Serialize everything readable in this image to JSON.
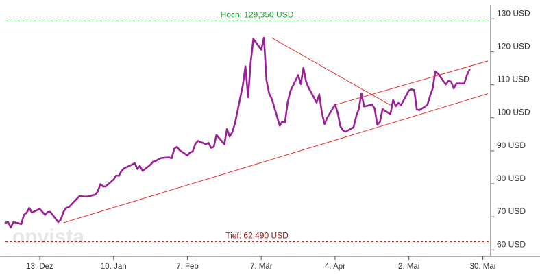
{
  "chart_data": {
    "type": "line",
    "title": "",
    "xlabel": "",
    "ylabel": "",
    "unit": "USD",
    "ylim": [
      58,
      134
    ],
    "grid": false,
    "watermark": "onvista",
    "colors": {
      "line": "#9b1f97",
      "trend": "#e8302a",
      "high": "#1f9e2c",
      "low": "#8c1a1a",
      "axis": "#555555"
    },
    "y_ticks": [
      {
        "value": 60,
        "label": "60 USD"
      },
      {
        "value": 70,
        "label": "70 USD"
      },
      {
        "value": 80,
        "label": "80 USD"
      },
      {
        "value": 90,
        "label": "90 USD"
      },
      {
        "value": 100,
        "label": "100 USD"
      },
      {
        "value": 110,
        "label": "110 USD"
      },
      {
        "value": 120,
        "label": "120 USD"
      },
      {
        "value": 130,
        "label": "130 USD"
      }
    ],
    "x_ticks": [
      {
        "date": "2021-12-13",
        "label": "13. Dez"
      },
      {
        "date": "2022-01-10",
        "label": "10. Jan"
      },
      {
        "date": "2022-02-07",
        "label": "7. Feb"
      },
      {
        "date": "2022-03-07",
        "label": "7. Mär"
      },
      {
        "date": "2022-04-04",
        "label": "4. Apr"
      },
      {
        "date": "2022-05-02",
        "label": "2. Mai"
      },
      {
        "date": "2022-05-30",
        "label": "30. Mai"
      }
    ],
    "x_range": [
      "2021-11-30",
      "2022-06-02"
    ],
    "annotations": {
      "high": {
        "value": 129.35,
        "label": "Hoch: 129,350 USD"
      },
      "low": {
        "value": 62.49,
        "label": "Tief: 62,490 USD"
      }
    },
    "trend_lines": [
      {
        "from": {
          "date": "2021-12-22",
          "value": 68.2
        },
        "to": {
          "date": "2022-06-01",
          "value": 107.3
        }
      },
      {
        "from": {
          "date": "2022-03-11",
          "value": 124.2
        },
        "to": {
          "date": "2022-04-25",
          "value": 103.8
        }
      },
      {
        "from": {
          "date": "2022-04-04",
          "value": 103.9
        },
        "to": {
          "date": "2022-06-01",
          "value": 117.2
        }
      }
    ],
    "series": [
      {
        "points": [
          [
            "2021-11-30",
            68.2
          ],
          [
            "2021-12-01",
            68.4
          ],
          [
            "2021-12-02",
            66.8
          ],
          [
            "2021-12-03",
            68.4
          ],
          [
            "2021-12-06",
            67.8
          ],
          [
            "2021-12-07",
            70.6
          ],
          [
            "2021-12-08",
            71.2
          ],
          [
            "2021-12-09",
            72.7
          ],
          [
            "2021-12-10",
            71.3
          ],
          [
            "2021-12-13",
            72.4
          ],
          [
            "2021-12-14",
            71.5
          ],
          [
            "2021-12-15",
            70.6
          ],
          [
            "2021-12-16",
            71.4
          ],
          [
            "2021-12-17",
            71.5
          ],
          [
            "2021-12-20",
            68.4
          ],
          [
            "2021-12-21",
            69.2
          ],
          [
            "2021-12-22",
            71.5
          ],
          [
            "2021-12-23",
            72.7
          ],
          [
            "2021-12-24",
            72.9
          ],
          [
            "2021-12-27",
            75.4
          ],
          [
            "2021-12-28",
            76.2
          ],
          [
            "2021-12-29",
            76.2
          ],
          [
            "2021-12-30",
            76.1
          ],
          [
            "2021-12-31",
            76.1
          ],
          [
            "2022-01-03",
            76.7
          ],
          [
            "2022-01-04",
            77.7
          ],
          [
            "2022-01-05",
            79.9
          ],
          [
            "2022-01-06",
            79.2
          ],
          [
            "2022-01-07",
            79.2
          ],
          [
            "2022-01-10",
            81.3
          ],
          [
            "2022-01-11",
            82.5
          ],
          [
            "2022-01-12",
            82.4
          ],
          [
            "2022-01-13",
            83.9
          ],
          [
            "2022-01-14",
            84.7
          ],
          [
            "2022-01-17",
            85.8
          ],
          [
            "2022-01-18",
            86.3
          ],
          [
            "2022-01-19",
            84.5
          ],
          [
            "2022-01-20",
            85.4
          ],
          [
            "2022-01-21",
            83.9
          ],
          [
            "2022-01-24",
            85.8
          ],
          [
            "2022-01-25",
            86.7
          ],
          [
            "2022-01-26",
            86.9
          ],
          [
            "2022-01-27",
            87.4
          ],
          [
            "2022-01-28",
            87.8
          ],
          [
            "2022-01-31",
            88.0
          ],
          [
            "2022-02-01",
            87.7
          ],
          [
            "2022-02-02",
            90.6
          ],
          [
            "2022-02-03",
            91.2
          ],
          [
            "2022-02-04",
            90.2
          ],
          [
            "2022-02-07",
            88.6
          ],
          [
            "2022-02-08",
            89.5
          ],
          [
            "2022-02-09",
            89.8
          ],
          [
            "2022-02-10",
            92.1
          ],
          [
            "2022-02-11",
            93.0
          ],
          [
            "2022-02-14",
            92.0
          ],
          [
            "2022-02-15",
            92.4
          ],
          [
            "2022-02-16",
            90.9
          ],
          [
            "2022-02-17",
            91.2
          ],
          [
            "2022-02-18",
            94.8
          ],
          [
            "2022-02-21",
            92.0
          ],
          [
            "2022-02-22",
            96.6
          ],
          [
            "2022-02-23",
            94.3
          ],
          [
            "2022-02-24",
            95.6
          ],
          [
            "2022-02-25",
            98.2
          ],
          [
            "2022-02-28",
            109.8
          ],
          [
            "2022-03-01",
            115.6
          ],
          [
            "2022-03-02",
            106.2
          ],
          [
            "2022-03-03",
            116.8
          ],
          [
            "2022-03-04",
            123.9
          ],
          [
            "2022-03-07",
            120.6
          ],
          [
            "2022-03-08",
            124.2
          ],
          [
            "2022-03-09",
            111.2
          ],
          [
            "2022-03-10",
            107.3
          ],
          [
            "2022-03-11",
            105.7
          ],
          [
            "2022-03-14",
            97.6
          ],
          [
            "2022-03-15",
            98.9
          ],
          [
            "2022-03-16",
            98.6
          ],
          [
            "2022-03-17",
            104.6
          ],
          [
            "2022-03-18",
            108.0
          ],
          [
            "2022-03-21",
            112.9
          ],
          [
            "2022-03-22",
            110.2
          ],
          [
            "2022-03-23",
            115.1
          ],
          [
            "2022-03-24",
            110.9
          ],
          [
            "2022-03-25",
            109.0
          ],
          [
            "2022-03-28",
            104.6
          ],
          [
            "2022-03-29",
            107.1
          ],
          [
            "2022-03-30",
            101.5
          ],
          [
            "2022-03-31",
            98.1
          ],
          [
            "2022-04-01",
            100.0
          ],
          [
            "2022-04-04",
            104.0
          ],
          [
            "2022-04-05",
            101.5
          ],
          [
            "2022-04-06",
            97.4
          ],
          [
            "2022-04-07",
            96.2
          ],
          [
            "2022-04-08",
            95.8
          ],
          [
            "2022-04-11",
            97.1
          ],
          [
            "2022-04-12",
            100.4
          ],
          [
            "2022-04-13",
            102.7
          ],
          [
            "2022-04-14",
            107.4
          ],
          [
            "2022-04-15",
            103.4
          ],
          [
            "2022-04-18",
            104.0
          ],
          [
            "2022-04-19",
            102.8
          ],
          [
            "2022-04-20",
            97.9
          ],
          [
            "2022-04-21",
            98.7
          ],
          [
            "2022-04-22",
            102.6
          ],
          [
            "2022-04-25",
            101.1
          ],
          [
            "2022-04-26",
            105.4
          ],
          [
            "2022-04-27",
            103.5
          ],
          [
            "2022-04-28",
            104.5
          ],
          [
            "2022-04-29",
            103.8
          ],
          [
            "2022-05-02",
            108.3
          ],
          [
            "2022-05-03",
            108.6
          ],
          [
            "2022-05-04",
            108.4
          ],
          [
            "2022-05-05",
            102.5
          ],
          [
            "2022-05-06",
            102.3
          ],
          [
            "2022-05-09",
            103.9
          ],
          [
            "2022-05-10",
            106.6
          ],
          [
            "2022-05-11",
            108.9
          ],
          [
            "2022-05-12",
            114.0
          ],
          [
            "2022-05-13",
            113.4
          ],
          [
            "2022-05-16",
            110.1
          ],
          [
            "2022-05-17",
            111.2
          ],
          [
            "2022-05-18",
            110.9
          ],
          [
            "2022-05-19",
            108.9
          ],
          [
            "2022-05-20",
            110.4
          ],
          [
            "2022-05-23",
            110.4
          ],
          [
            "2022-05-24",
            112.9
          ],
          [
            "2022-05-25",
            114.6
          ]
        ]
      }
    ]
  }
}
